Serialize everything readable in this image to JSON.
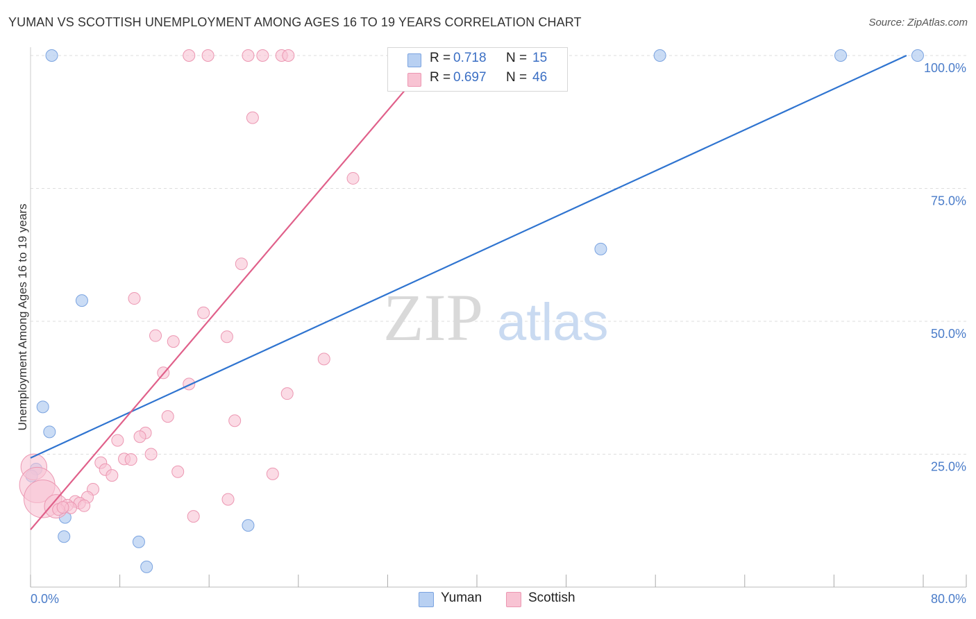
{
  "header": {
    "title": "YUMAN VS SCOTTISH UNEMPLOYMENT AMONG AGES 16 TO 19 YEARS CORRELATION CHART",
    "source": "Source: ZipAtlas.com"
  },
  "legend": {
    "rows": [
      {
        "r_label": "R =",
        "r_value": "0.718",
        "n_label": "N =",
        "n_value": "15"
      },
      {
        "r_label": "R =",
        "r_value": "0.697",
        "n_label": "N =",
        "n_value": "46"
      }
    ]
  },
  "bottom_legend": {
    "yuman": "Yuman",
    "scottish": "Scottish"
  },
  "watermark": {
    "zip": "ZIP",
    "atlas": "atlas"
  },
  "colors": {
    "yuman_fill": "#b8d0f2",
    "yuman_stroke": "#7aa3e0",
    "yuman_line": "#2f74d0",
    "scottish_fill": "#f8c3d3",
    "scottish_stroke": "#ec97b2",
    "scottish_line": "#e0608a"
  },
  "chart_data": {
    "type": "scatter",
    "title": "YUMAN VS SCOTTISH UNEMPLOYMENT AMONG AGES 16 TO 19 YEARS CORRELATION CHART",
    "xlabel": "",
    "ylabel": "Unemployment Among Ages 16 to 19 years",
    "xlim": [
      0,
      80
    ],
    "ylim": [
      0,
      100
    ],
    "x_tick_labels": [
      "0.0%",
      "80.0%"
    ],
    "y_ticks": [
      25,
      50,
      75,
      100
    ],
    "y_tick_labels": [
      "25.0%",
      "50.0%",
      "75.0%",
      "100.0%"
    ],
    "grid": true,
    "series": [
      {
        "name": "Yuman",
        "r": 0.718,
        "n": 15,
        "trendline": {
          "x": [
            0,
            78.5
          ],
          "y": [
            24.3,
            100
          ]
        },
        "points": [
          {
            "x": 1.9,
            "y": 100,
            "s": 1
          },
          {
            "x": 56.4,
            "y": 100,
            "s": 1
          },
          {
            "x": 72.6,
            "y": 100,
            "s": 1
          },
          {
            "x": 79.5,
            "y": 100,
            "s": 1
          },
          {
            "x": 51.1,
            "y": 63.6,
            "s": 1
          },
          {
            "x": 4.6,
            "y": 53.9,
            "s": 1
          },
          {
            "x": 1.1,
            "y": 33.9,
            "s": 1
          },
          {
            "x": 1.7,
            "y": 29.2,
            "s": 1
          },
          {
            "x": 0.5,
            "y": 22.2,
            "s": 1
          },
          {
            "x": 0.1,
            "y": 20.9,
            "s": 1
          },
          {
            "x": 3.1,
            "y": 13.1,
            "s": 1
          },
          {
            "x": 3.0,
            "y": 9.5,
            "s": 1
          },
          {
            "x": 9.7,
            "y": 8.5,
            "s": 1
          },
          {
            "x": 19.5,
            "y": 11.6,
            "s": 1
          },
          {
            "x": 10.4,
            "y": 3.8,
            "s": 1
          }
        ]
      },
      {
        "name": "Scottish",
        "r": 0.697,
        "n": 46,
        "trendline": {
          "x": [
            0,
            36.2
          ],
          "y": [
            10.8,
            100
          ]
        },
        "points": [
          {
            "x": 14.2,
            "y": 100,
            "s": 1
          },
          {
            "x": 15.9,
            "y": 100,
            "s": 1
          },
          {
            "x": 19.5,
            "y": 100,
            "s": 1
          },
          {
            "x": 20.8,
            "y": 100,
            "s": 1
          },
          {
            "x": 22.5,
            "y": 100,
            "s": 1
          },
          {
            "x": 23.1,
            "y": 100,
            "s": 1
          },
          {
            "x": 19.9,
            "y": 88.3,
            "s": 1
          },
          {
            "x": 28.9,
            "y": 76.9,
            "s": 1
          },
          {
            "x": 18.9,
            "y": 60.8,
            "s": 1
          },
          {
            "x": 9.3,
            "y": 54.3,
            "s": 1
          },
          {
            "x": 15.5,
            "y": 51.6,
            "s": 1
          },
          {
            "x": 11.2,
            "y": 47.3,
            "s": 1
          },
          {
            "x": 17.6,
            "y": 47.1,
            "s": 1
          },
          {
            "x": 12.8,
            "y": 46.2,
            "s": 1
          },
          {
            "x": 26.3,
            "y": 42.9,
            "s": 1
          },
          {
            "x": 11.9,
            "y": 40.3,
            "s": 1
          },
          {
            "x": 14.2,
            "y": 38.2,
            "s": 1
          },
          {
            "x": 23.0,
            "y": 36.4,
            "s": 1
          },
          {
            "x": 12.3,
            "y": 32.1,
            "s": 1
          },
          {
            "x": 18.3,
            "y": 31.3,
            "s": 1
          },
          {
            "x": 10.3,
            "y": 29.0,
            "s": 1
          },
          {
            "x": 9.8,
            "y": 28.3,
            "s": 1
          },
          {
            "x": 7.8,
            "y": 27.6,
            "s": 1
          },
          {
            "x": 10.8,
            "y": 25.0,
            "s": 1
          },
          {
            "x": 8.4,
            "y": 24.1,
            "s": 1
          },
          {
            "x": 9.0,
            "y": 24.0,
            "s": 1
          },
          {
            "x": 6.3,
            "y": 23.4,
            "s": 1
          },
          {
            "x": 6.7,
            "y": 22.1,
            "s": 1
          },
          {
            "x": 13.2,
            "y": 21.7,
            "s": 1
          },
          {
            "x": 21.7,
            "y": 21.3,
            "s": 1
          },
          {
            "x": 7.3,
            "y": 21.0,
            "s": 1
          },
          {
            "x": 0.3,
            "y": 22.6,
            "s": 2.2
          },
          {
            "x": 0.6,
            "y": 19.2,
            "s": 3
          },
          {
            "x": 1.1,
            "y": 16.6,
            "s": 3.2
          },
          {
            "x": 2.3,
            "y": 15.2,
            "s": 2
          },
          {
            "x": 5.6,
            "y": 18.4,
            "s": 1
          },
          {
            "x": 5.1,
            "y": 16.9,
            "s": 1
          },
          {
            "x": 4.0,
            "y": 16.1,
            "s": 1
          },
          {
            "x": 4.4,
            "y": 15.8,
            "s": 1
          },
          {
            "x": 3.3,
            "y": 15.4,
            "s": 1
          },
          {
            "x": 3.6,
            "y": 14.9,
            "s": 1
          },
          {
            "x": 4.8,
            "y": 15.3,
            "s": 1
          },
          {
            "x": 17.7,
            "y": 16.5,
            "s": 1
          },
          {
            "x": 14.6,
            "y": 13.3,
            "s": 1
          },
          {
            "x": 2.5,
            "y": 14.6,
            "s": 1
          },
          {
            "x": 2.9,
            "y": 15.0,
            "s": 1
          }
        ]
      }
    ]
  }
}
